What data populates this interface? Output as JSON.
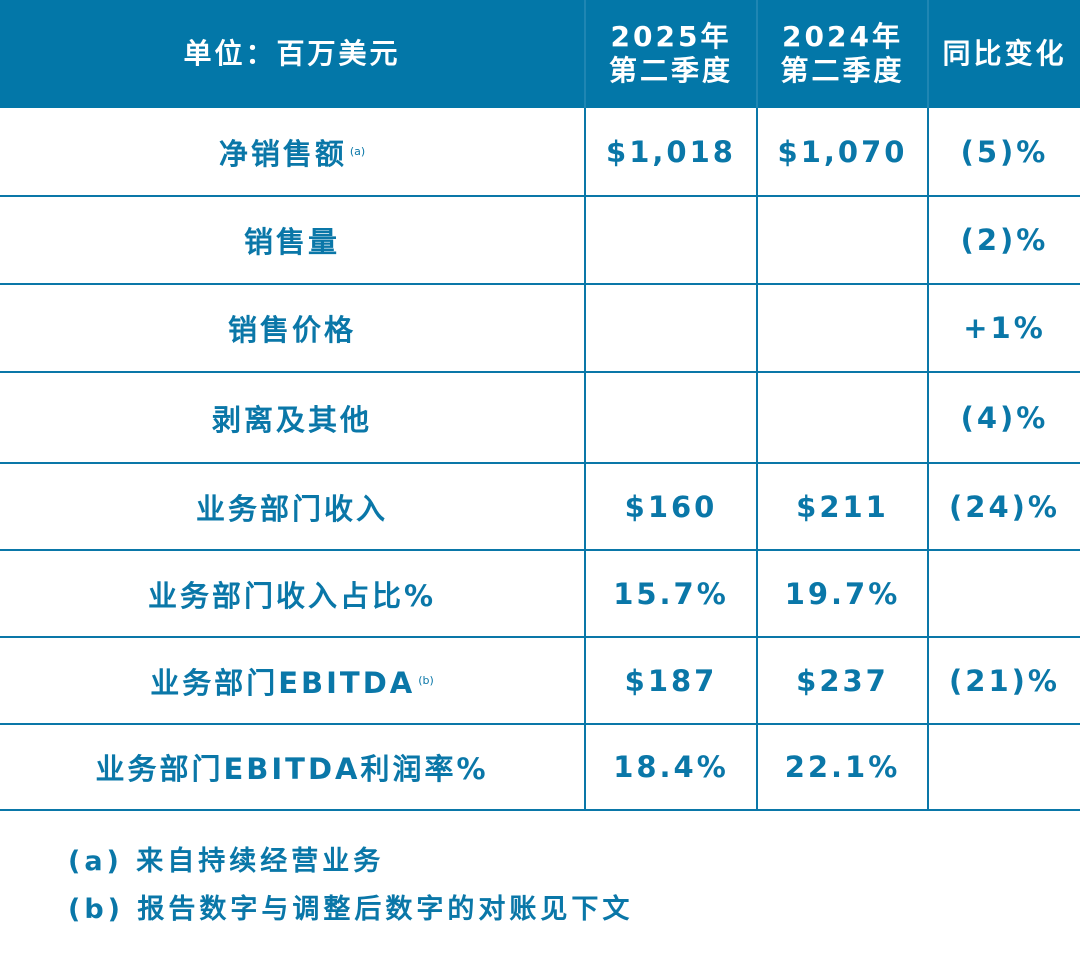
{
  "header": {
    "unit": "单位：百万美元",
    "col_2025": "2025年\n第二季度",
    "col_2025_year": "2025年",
    "col_2025_q": "第二季度",
    "col_2024_year": "2024年",
    "col_2024_q": "第二季度",
    "col_change": "同比变化"
  },
  "rows": [
    {
      "label": "净销售额",
      "sup": "(a)",
      "v2025": "$1,018",
      "v2024": "$1,070",
      "change": "(5)%"
    },
    {
      "label": "销售量",
      "sup": "",
      "v2025": "",
      "v2024": "",
      "change": "(2)%"
    },
    {
      "label": "销售价格",
      "sup": "",
      "v2025": "",
      "v2024": "",
      "change": "+1%"
    },
    {
      "label": "剥离及其他",
      "sup": "",
      "v2025": "",
      "v2024": "",
      "change": "(4)%"
    },
    {
      "label": "业务部门收入",
      "sup": "",
      "v2025": "$160",
      "v2024": "$211",
      "change": "(24)%"
    },
    {
      "label": "业务部门收入占比%",
      "sup": "",
      "v2025": "15.7%",
      "v2024": "19.7%",
      "change": ""
    },
    {
      "label": "业务部门EBITDA",
      "sup": "(b)",
      "v2025": "$187",
      "v2024": "$237",
      "change": "(21)%"
    },
    {
      "label": "业务部门EBITDA利润率%",
      "sup": "",
      "v2025": "18.4%",
      "v2024": "22.1%",
      "change": ""
    }
  ],
  "footnotes": [
    "(a) 来自持续经营业务",
    "(b) 报告数字与调整后数字的对账见下文"
  ],
  "colors": {
    "accent": "#0377a8"
  }
}
